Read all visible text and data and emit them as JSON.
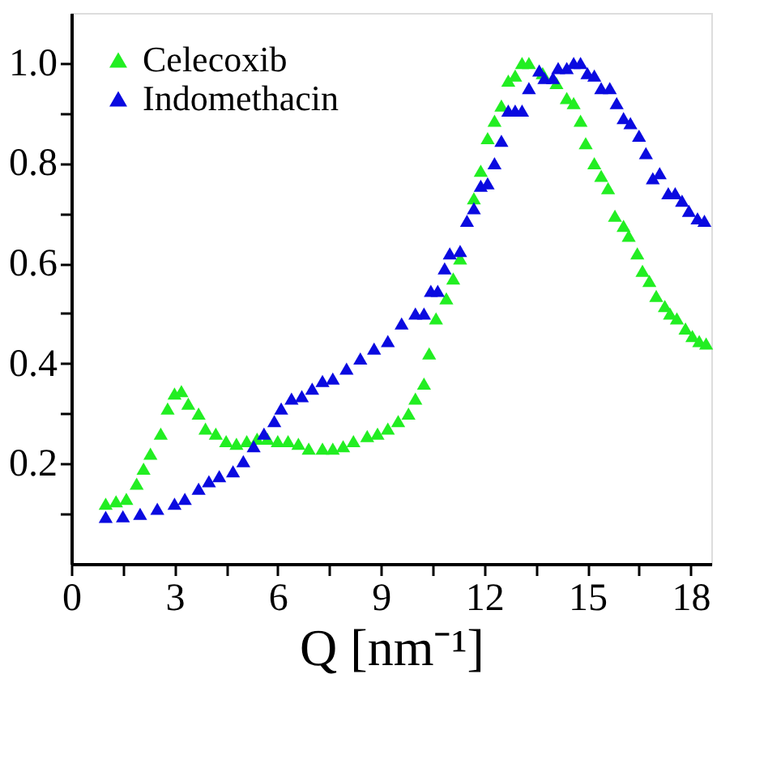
{
  "chart_data": {
    "type": "scatter",
    "xlabel": "Q [nm⁻¹]",
    "marker": "triangle",
    "legend": "top left",
    "grid": false,
    "xlim": [
      0,
      18.6
    ],
    "ylim": [
      0.0,
      1.1
    ],
    "xticks": [
      0,
      {
        "value": 1.5,
        "label": null
      },
      3,
      {
        "value": 4.5,
        "label": null
      },
      6,
      {
        "value": 7.5,
        "label": null
      },
      9,
      {
        "value": 10.5,
        "label": null
      },
      12,
      {
        "value": 13.5,
        "label": null
      },
      15,
      {
        "value": 16.5,
        "label": null
      },
      18
    ],
    "yticks": [
      {
        "value": 0.1,
        "label": null
      },
      {
        "value": 0.2,
        "label": "0.2"
      },
      {
        "value": 0.3,
        "label": null
      },
      {
        "value": 0.4,
        "label": "0.4"
      },
      {
        "value": 0.5,
        "label": null
      },
      {
        "value": 0.6,
        "label": "0.6"
      },
      {
        "value": 0.7,
        "label": null
      },
      {
        "value": 0.8,
        "label": "0.8"
      },
      {
        "value": 0.9,
        "label": null
      },
      {
        "value": 1.0,
        "label": "1.0"
      }
    ],
    "series": [
      {
        "name": "Celecoxib",
        "color": "#22ee22",
        "x": [
          1.0,
          1.3,
          1.6,
          1.9,
          2.1,
          2.3,
          2.6,
          2.8,
          3.0,
          3.2,
          3.4,
          3.7,
          3.9,
          4.2,
          4.5,
          4.8,
          5.1,
          5.4,
          5.7,
          6.0,
          6.3,
          6.6,
          6.9,
          7.3,
          7.6,
          7.9,
          8.2,
          8.6,
          8.9,
          9.2,
          9.5,
          9.8,
          10.0,
          10.25,
          10.4,
          10.6,
          10.9,
          11.1,
          11.3,
          11.7,
          11.9,
          12.1,
          12.3,
          12.5,
          12.7,
          12.9,
          13.1,
          13.3,
          13.7,
          14.1,
          14.4,
          14.6,
          14.8,
          14.95,
          15.2,
          15.4,
          15.6,
          15.8,
          16.05,
          16.2,
          16.45,
          16.6,
          16.8,
          17.0,
          17.25,
          17.4,
          17.6,
          17.85,
          18.05,
          18.25,
          18.45
        ],
        "values": [
          0.12,
          0.125,
          0.13,
          0.16,
          0.19,
          0.22,
          0.26,
          0.31,
          0.34,
          0.345,
          0.32,
          0.3,
          0.27,
          0.26,
          0.245,
          0.24,
          0.245,
          0.25,
          0.25,
          0.245,
          0.245,
          0.24,
          0.23,
          0.23,
          0.23,
          0.235,
          0.245,
          0.255,
          0.26,
          0.27,
          0.285,
          0.3,
          0.33,
          0.36,
          0.42,
          0.49,
          0.53,
          0.57,
          0.61,
          0.73,
          0.785,
          0.85,
          0.885,
          0.915,
          0.965,
          0.975,
          1.0,
          1.0,
          0.98,
          0.96,
          0.93,
          0.92,
          0.885,
          0.84,
          0.8,
          0.775,
          0.75,
          0.695,
          0.675,
          0.655,
          0.62,
          0.585,
          0.565,
          0.535,
          0.515,
          0.5,
          0.49,
          0.47,
          0.455,
          0.445,
          0.44
        ]
      },
      {
        "name": "Indomethacin",
        "color": "#0a0ae0",
        "x": [
          1.0,
          1.5,
          2.0,
          2.5,
          3.0,
          3.3,
          3.7,
          4.0,
          4.3,
          4.7,
          5.0,
          5.3,
          5.6,
          5.9,
          6.1,
          6.4,
          6.7,
          7.0,
          7.3,
          7.6,
          8.0,
          8.4,
          8.8,
          9.2,
          9.6,
          10.0,
          10.25,
          10.45,
          10.65,
          10.85,
          11.0,
          11.3,
          11.5,
          11.7,
          11.9,
          12.1,
          12.3,
          12.5,
          12.7,
          12.9,
          13.1,
          13.3,
          13.6,
          13.75,
          14.0,
          14.15,
          14.4,
          14.6,
          14.8,
          15.0,
          15.2,
          15.4,
          15.65,
          15.85,
          16.05,
          16.25,
          16.5,
          16.7,
          16.9,
          17.1,
          17.35,
          17.55,
          17.75,
          17.95,
          18.2,
          18.4
        ],
        "values": [
          0.094,
          0.095,
          0.1,
          0.11,
          0.12,
          0.13,
          0.15,
          0.165,
          0.175,
          0.185,
          0.205,
          0.235,
          0.26,
          0.285,
          0.31,
          0.33,
          0.335,
          0.35,
          0.365,
          0.37,
          0.39,
          0.41,
          0.43,
          0.445,
          0.48,
          0.5,
          0.5,
          0.545,
          0.545,
          0.59,
          0.62,
          0.625,
          0.685,
          0.71,
          0.755,
          0.76,
          0.8,
          0.845,
          0.905,
          0.905,
          0.905,
          0.95,
          0.985,
          0.97,
          0.97,
          0.99,
          0.99,
          1.0,
          1.0,
          0.98,
          0.975,
          0.95,
          0.95,
          0.92,
          0.89,
          0.88,
          0.855,
          0.82,
          0.77,
          0.78,
          0.74,
          0.74,
          0.725,
          0.705,
          0.69,
          0.685
        ]
      }
    ]
  }
}
